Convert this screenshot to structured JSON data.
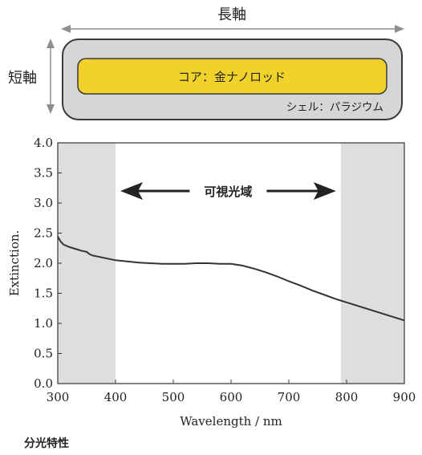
{
  "diagram": {
    "long_axis_label": "長軸",
    "short_axis_label": "短軸",
    "core_label": "コア：金ナノロッド",
    "shell_label": "シェル：パラジウム",
    "colors": {
      "shell": "#d6d6d6",
      "core": "#f1d22b",
      "outline": "#3a3a3a",
      "arrow": "#8e8e8e"
    }
  },
  "chart_data": {
    "type": "line",
    "xlabel": "Wavelength / nm",
    "ylabel": "Extinction.",
    "xlim": [
      300,
      900
    ],
    "ylim": [
      0,
      4.0
    ],
    "x_ticks": [
      "300",
      "400",
      "500",
      "600",
      "700",
      "800",
      "900"
    ],
    "y_ticks": [
      "0.0",
      "0.5",
      "1.0",
      "1.5",
      "2.0",
      "2.5",
      "3.0",
      "3.5",
      "4.0"
    ],
    "shaded_regions": [
      [
        300,
        400
      ],
      [
        790,
        900
      ]
    ],
    "visible_region_label": "可視光域",
    "visible_region_range": [
      400,
      790
    ],
    "series": [
      {
        "x": [
          300,
          305,
          310,
          320,
          330,
          340,
          350,
          355,
          360,
          370,
          380,
          390,
          400,
          420,
          440,
          460,
          480,
          500,
          520,
          540,
          560,
          580,
          600,
          620,
          640,
          660,
          680,
          700,
          720,
          740,
          760,
          780,
          800,
          820,
          840,
          860,
          880,
          900
        ],
        "y": [
          2.44,
          2.36,
          2.31,
          2.27,
          2.24,
          2.21,
          2.19,
          2.15,
          2.13,
          2.11,
          2.09,
          2.07,
          2.05,
          2.03,
          2.01,
          2.0,
          1.99,
          1.99,
          1.99,
          2.0,
          2.0,
          1.99,
          1.99,
          1.96,
          1.91,
          1.85,
          1.78,
          1.7,
          1.63,
          1.55,
          1.48,
          1.41,
          1.35,
          1.29,
          1.23,
          1.17,
          1.11,
          1.05
        ]
      }
    ]
  },
  "caption": "分光特性"
}
